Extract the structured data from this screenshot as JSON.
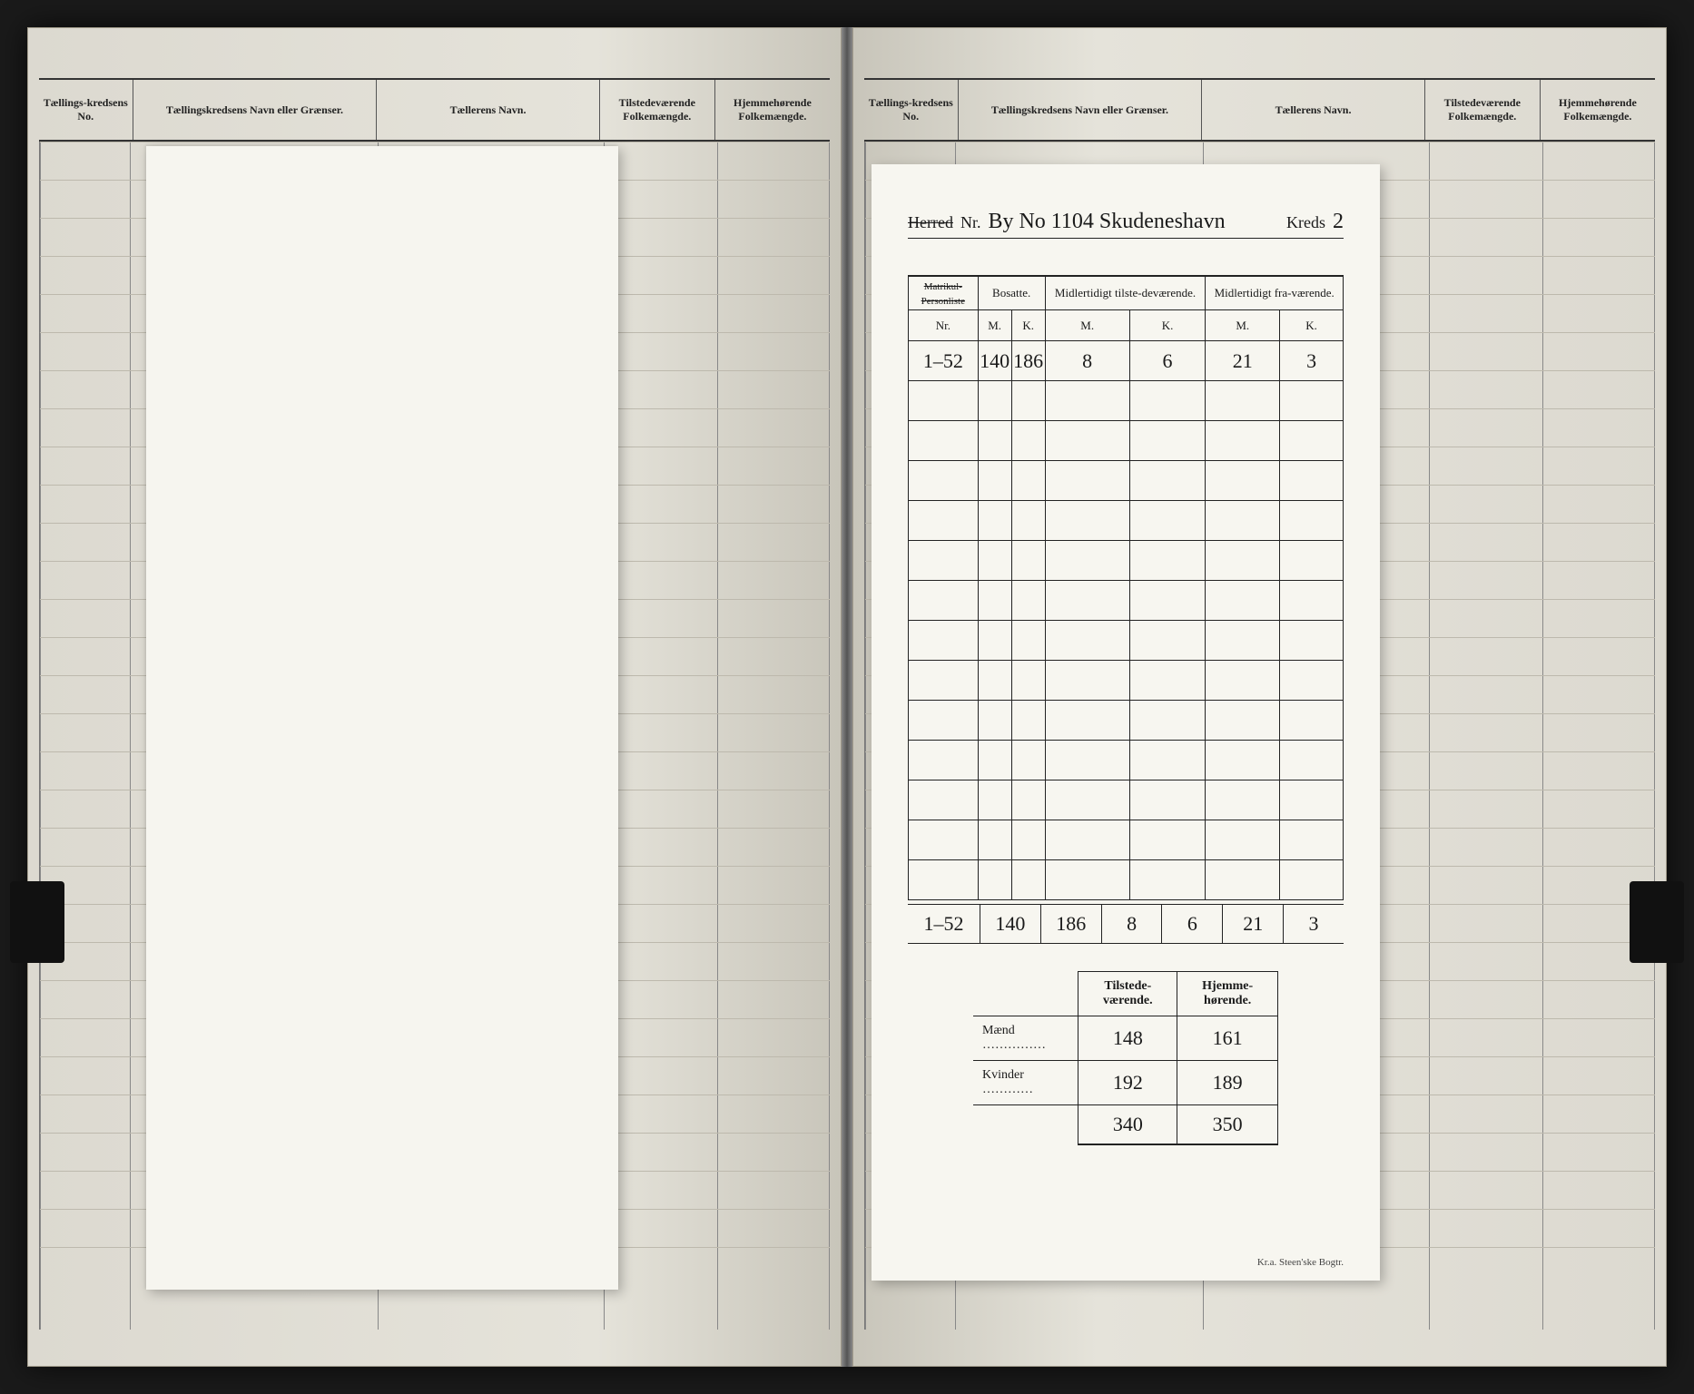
{
  "register_headers": {
    "col1": "Tællings-kredsens No.",
    "col2": "Tællingskredsens Navn eller Grænser.",
    "col3": "Tællerens Navn.",
    "col4": "Tilstedeværende Folkemængde.",
    "col5": "Hjemmehørende Folkemængde."
  },
  "form": {
    "herred_label_struck": "Herred",
    "nr_label": "Nr.",
    "herred_value": "By No 1104 Skudeneshavn",
    "kreds_label": "Kreds",
    "kreds_no": "2",
    "table_headers": {
      "col1_struck": "Matrikul-",
      "col1_sub_struck": "Personliste",
      "col1_nr": "Nr.",
      "bosatte": "Bosatte.",
      "mid_tilst": "Midlertidigt tilste-deværende.",
      "mid_fra": "Midlertidigt fra-værende.",
      "M": "M.",
      "K": "K."
    },
    "data_row": {
      "nr": "1–52",
      "bosatte_m": "140",
      "bosatte_k": "186",
      "tilst_m": "8",
      "tilst_k": "6",
      "fra_m": "21",
      "fra_k": "3"
    },
    "totals": {
      "nr": "1–52",
      "bosatte_m": "140",
      "bosatte_k": "186",
      "tilst_m": "8",
      "tilst_k": "6",
      "fra_m": "21",
      "fra_k": "3"
    },
    "summary": {
      "tilst_label": "Tilstede-værende.",
      "hjemme_label": "Hjemme-hørende.",
      "maend_label": "Mænd",
      "kvinder_label": "Kvinder",
      "maend_tilst": "148",
      "maend_hjemme": "161",
      "kvinder_tilst": "192",
      "kvinder_hjemme": "189",
      "sum_tilst": "340",
      "sum_hjemme": "350"
    },
    "printer": "Kr.a.   Steen'ske Bogtr."
  },
  "colors": {
    "page_bg": "#e5e3da",
    "sheet_bg": "#f7f6f0",
    "ink": "#1a1a1a",
    "rule": "#888"
  }
}
